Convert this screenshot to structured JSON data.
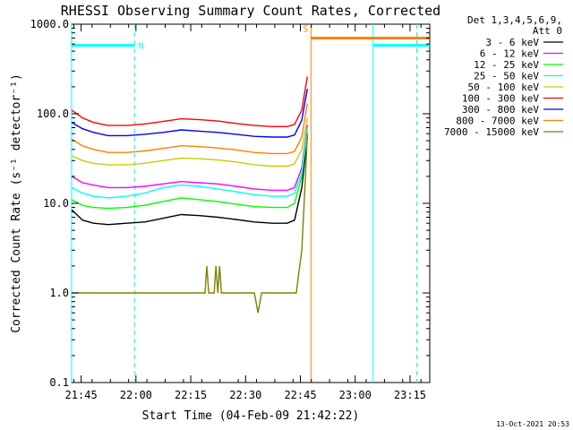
{
  "chart_data": {
    "type": "line",
    "title": "RHESSI Observing Summary Count Rates, Corrected",
    "xlabel": "Start Time (04-Feb-09 21:42:22)",
    "ylabel": "Corrected Count Rate (s⁻¹ detector⁻¹)",
    "y_scale": "log",
    "ylim": [
      0.1,
      1000
    ],
    "xlim_minutes_after_start": [
      0,
      98
    ],
    "x_ticks": [
      {
        "label": "21:45",
        "minutes": 2.6
      },
      {
        "label": "22:00",
        "minutes": 17.6
      },
      {
        "label": "22:15",
        "minutes": 32.6
      },
      {
        "label": "22:30",
        "minutes": 47.6
      },
      {
        "label": "22:45",
        "minutes": 62.6
      },
      {
        "label": "23:00",
        "minutes": 77.6
      },
      {
        "label": "23:15",
        "minutes": 92.6
      }
    ],
    "y_ticks": [
      {
        "label": "0.1",
        "value": 0.1
      },
      {
        "label": "1.0",
        "value": 1
      },
      {
        "label": "10.0",
        "value": 10
      },
      {
        "label": "100.0",
        "value": 100
      },
      {
        "label": "1000.0",
        "value": 1000
      }
    ],
    "legend_header": [
      "Det 1,3,4,5,6,9,",
      "Att 0"
    ],
    "legend_placement": "right",
    "series": [
      {
        "name": "3 - 6 keV",
        "color": "#000000",
        "x": [
          0,
          3,
          6,
          10,
          15,
          20,
          25,
          30,
          35,
          40,
          45,
          50,
          55,
          59,
          61,
          63,
          64.5
        ],
        "y": [
          8.5,
          6.5,
          6.0,
          5.8,
          6.0,
          6.2,
          6.8,
          7.5,
          7.3,
          7.0,
          6.6,
          6.2,
          6.0,
          6.0,
          6.5,
          15,
          55
        ]
      },
      {
        "name": "6 - 12 keV",
        "color": "#ff00ff",
        "x": [
          0,
          3,
          6,
          10,
          15,
          20,
          25,
          30,
          35,
          40,
          45,
          50,
          55,
          59,
          61,
          63,
          64.5
        ],
        "y": [
          20,
          17,
          16,
          15,
          15,
          15.5,
          16.5,
          17.5,
          17,
          16.5,
          15.5,
          14.5,
          14,
          14,
          15,
          25,
          75
        ]
      },
      {
        "name": "12 - 25 keV",
        "color": "#00ff00",
        "x": [
          0,
          3,
          6,
          10,
          15,
          20,
          25,
          30,
          35,
          40,
          45,
          50,
          55,
          59,
          61,
          63,
          64.5
        ],
        "y": [
          11,
          9.5,
          9,
          8.8,
          9,
          9.5,
          10.5,
          11.5,
          11,
          10.5,
          9.8,
          9.2,
          9,
          9,
          10,
          20,
          65
        ]
      },
      {
        "name": "25 - 50 keV",
        "color": "#00ffff",
        "x": [
          0,
          3,
          6,
          10,
          15,
          20,
          25,
          30,
          35,
          40,
          45,
          50,
          55,
          59,
          61,
          63,
          64.5
        ],
        "y": [
          15,
          13,
          12,
          11.5,
          12,
          13,
          15,
          16,
          15.5,
          14.5,
          13.5,
          12.5,
          12,
          12,
          13,
          22,
          70
        ]
      },
      {
        "name": "50 - 100 keV",
        "color": "#cccc00",
        "x": [
          0,
          3,
          6,
          10,
          15,
          20,
          25,
          30,
          35,
          40,
          45,
          50,
          55,
          59,
          61,
          63,
          64.5
        ],
        "y": [
          34,
          30,
          28,
          27,
          27,
          28,
          30,
          32,
          31.5,
          30.5,
          29,
          27,
          26,
          26,
          27.5,
          40,
          90
        ]
      },
      {
        "name": "100 - 300 keV",
        "color": "#ff0000",
        "x": [
          0,
          3,
          6,
          10,
          15,
          20,
          25,
          30,
          35,
          40,
          45,
          50,
          55,
          59,
          61,
          63,
          64.5
        ],
        "y": [
          110,
          90,
          80,
          74,
          74,
          77,
          82,
          88,
          86,
          83,
          78,
          74,
          72,
          72,
          76,
          110,
          260
        ]
      },
      {
        "name": "300 - 800 keV",
        "color": "#0000ff",
        "x": [
          0,
          3,
          6,
          10,
          15,
          20,
          25,
          30,
          35,
          40,
          45,
          50,
          55,
          59,
          61,
          63,
          64.5
        ],
        "y": [
          80,
          68,
          62,
          57,
          57,
          59,
          62,
          66,
          64,
          62,
          59,
          56,
          55,
          55,
          58,
          85,
          190
        ]
      },
      {
        "name": "800 - 7000 keV",
        "color": "#ff8000",
        "x": [
          0,
          3,
          6,
          10,
          15,
          20,
          25,
          30,
          35,
          40,
          45,
          50,
          55,
          59,
          61,
          63,
          64.5
        ],
        "y": [
          52,
          44,
          40,
          37,
          37,
          38.5,
          41,
          44,
          43,
          41.5,
          39.5,
          37,
          36,
          36,
          38,
          55,
          130
        ]
      },
      {
        "name": "7000 - 15000 keV",
        "color": "#808000",
        "x": [
          0,
          5,
          10,
          20,
          25,
          28,
          35,
          36.5,
          37,
          37.5,
          38,
          39,
          39.5,
          40,
          40.5,
          41,
          45,
          50,
          51,
          52,
          60,
          61.5,
          62,
          63,
          64,
          64.5
        ],
        "y": [
          1.0,
          1.0,
          1.0,
          1.0,
          1.0,
          1.0,
          1.0,
          1.0,
          2.0,
          1.0,
          1.0,
          1.0,
          2.0,
          1.0,
          2.0,
          1.0,
          1.0,
          1.0,
          0.6,
          1.0,
          1.0,
          1.0,
          1.5,
          3,
          20,
          60
        ]
      }
    ],
    "flag_bars": [
      {
        "label": "N",
        "color": "#00ffff",
        "segments": [
          [
            0,
            17.3
          ],
          [
            82.5,
            98
          ]
        ],
        "value": 580
      },
      {
        "label": "S",
        "color": "#ff8000",
        "segments": [
          [
            65.5,
            98
          ]
        ],
        "value": 700
      }
    ],
    "vertical_markers": [
      {
        "minutes": 0,
        "color": "#00ffff",
        "style": "solid"
      },
      {
        "minutes": 17.3,
        "color": "#00ffff",
        "style": "dashed"
      },
      {
        "minutes": 65.5,
        "color": "#ff8000",
        "style": "solid"
      },
      {
        "minutes": 82.5,
        "color": "#00ffff",
        "style": "solid"
      },
      {
        "minutes": 94.5,
        "color": "#ff8000",
        "style": "dashed"
      },
      {
        "minutes": 94.5,
        "color": "#00ffff",
        "style": "dashed"
      }
    ]
  },
  "footer": {
    "timestamp": "13-Oct-2021 20:53"
  }
}
